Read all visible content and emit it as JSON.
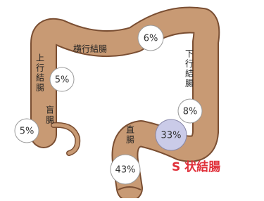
{
  "regions": [
    {
      "label": "横行結腸",
      "rate": "6%"
    },
    {
      "label": "上行結腸",
      "rate": "5%"
    },
    {
      "label": "下行結腸",
      "rate": "8%"
    },
    {
      "label": "盲腸",
      "rate": "5%"
    },
    {
      "label": "S 状結腸",
      "rate": "33%"
    },
    {
      "label": "直腸",
      "rate": "43%"
    }
  ]
}
